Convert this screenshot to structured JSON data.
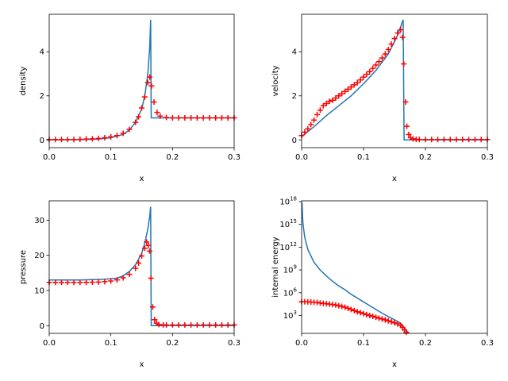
{
  "chart_data": [
    {
      "type": "line",
      "xlabel": "x",
      "ylabel": "density",
      "xlim": [
        0,
        0.3
      ],
      "ylim": [
        -0.35,
        5.7
      ],
      "xticks": [
        "0.0",
        "0.1",
        "0.2",
        "0.3"
      ],
      "yticks": [
        "0",
        "2",
        "4"
      ],
      "xtick_values": [
        0,
        0.1,
        0.2,
        0.3
      ],
      "ytick_values": [
        0,
        2,
        4
      ],
      "grid": false,
      "series": [
        {
          "style": "line",
          "color": "#1f77b4",
          "points": [
            [
              0,
              0
            ],
            [
              0.05,
              0.01
            ],
            [
              0.08,
              0.04
            ],
            [
              0.1,
              0.1
            ],
            [
              0.12,
              0.25
            ],
            [
              0.13,
              0.45
            ],
            [
              0.14,
              0.8
            ],
            [
              0.15,
              1.4
            ],
            [
              0.155,
              2.0
            ],
            [
              0.16,
              3.0
            ],
            [
              0.163,
              4.2
            ],
            [
              0.1645,
              5.45
            ],
            [
              0.1655,
              1.0
            ],
            [
              0.3,
              1.0
            ]
          ]
        },
        {
          "style": "marker-plus",
          "color": "#ff0000",
          "points": [
            [
              0.0,
              0.02
            ],
            [
              0.01,
              0.02
            ],
            [
              0.02,
              0.02
            ],
            [
              0.03,
              0.02
            ],
            [
              0.04,
              0.02
            ],
            [
              0.05,
              0.03
            ],
            [
              0.06,
              0.04
            ],
            [
              0.07,
              0.05
            ],
            [
              0.08,
              0.07
            ],
            [
              0.09,
              0.1
            ],
            [
              0.1,
              0.14
            ],
            [
              0.11,
              0.2
            ],
            [
              0.12,
              0.3
            ],
            [
              0.13,
              0.48
            ],
            [
              0.14,
              0.8
            ],
            [
              0.145,
              1.05
            ],
            [
              0.15,
              1.45
            ],
            [
              0.155,
              1.95
            ],
            [
              0.16,
              2.6
            ],
            [
              0.163,
              2.85
            ],
            [
              0.166,
              2.45
            ],
            [
              0.17,
              1.72
            ],
            [
              0.175,
              1.25
            ],
            [
              0.18,
              1.08
            ],
            [
              0.19,
              1.02
            ],
            [
              0.2,
              1.0
            ],
            [
              0.21,
              1.0
            ],
            [
              0.22,
              1.0
            ],
            [
              0.23,
              1.0
            ],
            [
              0.24,
              1.0
            ],
            [
              0.25,
              1.0
            ],
            [
              0.26,
              1.0
            ],
            [
              0.27,
              1.0
            ],
            [
              0.28,
              1.0
            ],
            [
              0.29,
              1.0
            ],
            [
              0.3,
              1.0
            ]
          ]
        }
      ]
    },
    {
      "type": "line",
      "xlabel": "x",
      "ylabel": "velocity",
      "xlim": [
        0,
        0.3
      ],
      "ylim": [
        -0.35,
        5.7
      ],
      "xticks": [
        "0.0",
        "0.1",
        "0.2",
        "0.3"
      ],
      "yticks": [
        "0",
        "2",
        "4"
      ],
      "xtick_values": [
        0,
        0.1,
        0.2,
        0.3
      ],
      "ytick_values": [
        0,
        2,
        4
      ],
      "grid": false,
      "series": [
        {
          "style": "line",
          "color": "#1f77b4",
          "points": [
            [
              0,
              0.15
            ],
            [
              0.02,
              0.6
            ],
            [
              0.04,
              1.1
            ],
            [
              0.06,
              1.55
            ],
            [
              0.08,
              2.0
            ],
            [
              0.1,
              2.55
            ],
            [
              0.12,
              3.15
            ],
            [
              0.14,
              3.9
            ],
            [
              0.155,
              4.75
            ],
            [
              0.164,
              5.45
            ],
            [
              0.1655,
              0.0
            ],
            [
              0.3,
              0.0
            ]
          ]
        },
        {
          "style": "marker-plus",
          "color": "#ff0000",
          "points": [
            [
              0.0,
              0.2
            ],
            [
              0.005,
              0.35
            ],
            [
              0.01,
              0.5
            ],
            [
              0.015,
              0.7
            ],
            [
              0.02,
              0.9
            ],
            [
              0.025,
              1.15
            ],
            [
              0.03,
              1.35
            ],
            [
              0.035,
              1.55
            ],
            [
              0.04,
              1.65
            ],
            [
              0.045,
              1.75
            ],
            [
              0.05,
              1.8
            ],
            [
              0.055,
              1.9
            ],
            [
              0.06,
              2.0
            ],
            [
              0.065,
              2.1
            ],
            [
              0.07,
              2.2
            ],
            [
              0.075,
              2.3
            ],
            [
              0.08,
              2.4
            ],
            [
              0.085,
              2.5
            ],
            [
              0.09,
              2.6
            ],
            [
              0.095,
              2.72
            ],
            [
              0.1,
              2.85
            ],
            [
              0.105,
              2.98
            ],
            [
              0.11,
              3.1
            ],
            [
              0.115,
              3.25
            ],
            [
              0.12,
              3.4
            ],
            [
              0.125,
              3.55
            ],
            [
              0.13,
              3.72
            ],
            [
              0.135,
              3.9
            ],
            [
              0.14,
              4.1
            ],
            [
              0.145,
              4.35
            ],
            [
              0.15,
              4.6
            ],
            [
              0.155,
              4.85
            ],
            [
              0.16,
              5.0
            ],
            [
              0.163,
              4.65
            ],
            [
              0.165,
              3.45
            ],
            [
              0.168,
              1.72
            ],
            [
              0.17,
              0.62
            ],
            [
              0.173,
              0.25
            ],
            [
              0.176,
              0.1
            ],
            [
              0.18,
              0.05
            ],
            [
              0.185,
              0.03
            ],
            [
              0.19,
              0.02
            ],
            [
              0.2,
              0.02
            ],
            [
              0.21,
              0.02
            ],
            [
              0.22,
              0.02
            ],
            [
              0.23,
              0.02
            ],
            [
              0.24,
              0.02
            ],
            [
              0.25,
              0.02
            ],
            [
              0.26,
              0.02
            ],
            [
              0.27,
              0.02
            ],
            [
              0.28,
              0.02
            ],
            [
              0.29,
              0.02
            ],
            [
              0.3,
              0.02
            ]
          ]
        }
      ]
    },
    {
      "type": "line",
      "xlabel": "x",
      "ylabel": "pressure",
      "xlim": [
        0,
        0.3
      ],
      "ylim": [
        -2.2,
        35.5
      ],
      "xticks": [
        "0.0",
        "0.1",
        "0.2",
        "0.3"
      ],
      "yticks": [
        "0",
        "10",
        "20",
        "30"
      ],
      "xtick_values": [
        0,
        0.1,
        0.2,
        0.3
      ],
      "ytick_values": [
        0,
        10,
        20,
        30
      ],
      "grid": false,
      "series": [
        {
          "style": "line",
          "color": "#1f77b4",
          "points": [
            [
              0,
              13.0
            ],
            [
              0.05,
              13.0
            ],
            [
              0.09,
              13.2
            ],
            [
              0.11,
              13.5
            ],
            [
              0.12,
              14.2
            ],
            [
              0.13,
              15.4
            ],
            [
              0.14,
              17.3
            ],
            [
              0.15,
              20.5
            ],
            [
              0.155,
              23.5
            ],
            [
              0.16,
              27.5
            ],
            [
              0.163,
              31.0
            ],
            [
              0.1645,
              33.8
            ],
            [
              0.1655,
              0.0
            ],
            [
              0.3,
              0.0
            ]
          ]
        },
        {
          "style": "marker-plus",
          "color": "#ff0000",
          "points": [
            [
              0.0,
              12.3
            ],
            [
              0.01,
              12.3
            ],
            [
              0.02,
              12.3
            ],
            [
              0.03,
              12.3
            ],
            [
              0.04,
              12.3
            ],
            [
              0.05,
              12.3
            ],
            [
              0.06,
              12.3
            ],
            [
              0.07,
              12.35
            ],
            [
              0.08,
              12.4
            ],
            [
              0.09,
              12.5
            ],
            [
              0.1,
              12.7
            ],
            [
              0.11,
              13.0
            ],
            [
              0.12,
              13.6
            ],
            [
              0.13,
              14.6
            ],
            [
              0.14,
              16.3
            ],
            [
              0.145,
              17.8
            ],
            [
              0.15,
              19.8
            ],
            [
              0.155,
              22.0
            ],
            [
              0.158,
              23.8
            ],
            [
              0.161,
              22.8
            ],
            [
              0.163,
              21.2
            ],
            [
              0.165,
              13.5
            ],
            [
              0.168,
              5.3
            ],
            [
              0.171,
              1.7
            ],
            [
              0.174,
              0.7
            ],
            [
              0.178,
              0.3
            ],
            [
              0.185,
              0.2
            ],
            [
              0.19,
              0.2
            ],
            [
              0.2,
              0.2
            ],
            [
              0.21,
              0.2
            ],
            [
              0.22,
              0.2
            ],
            [
              0.23,
              0.2
            ],
            [
              0.24,
              0.2
            ],
            [
              0.25,
              0.2
            ],
            [
              0.26,
              0.2
            ],
            [
              0.27,
              0.2
            ],
            [
              0.28,
              0.2
            ],
            [
              0.29,
              0.2
            ],
            [
              0.3,
              0.2
            ]
          ]
        }
      ]
    },
    {
      "type": "line",
      "xlabel": "x",
      "ylabel": "internal energy",
      "xlim": [
        0,
        0.3
      ],
      "ylim_log10": [
        0.65,
        18.1
      ],
      "yscale": "log",
      "xticks": [
        "0.0",
        "0.1",
        "0.2",
        "0.3"
      ],
      "yticks": [
        "10^3",
        "10^6",
        "10^9",
        "10^12",
        "10^15",
        "10^18"
      ],
      "xtick_values": [
        0,
        0.1,
        0.2,
        0.3
      ],
      "ytick_log10": [
        3,
        6,
        9,
        12,
        15,
        18
      ],
      "grid": false,
      "series": [
        {
          "style": "line",
          "color": "#1f77b4",
          "points_log10": [
            [
              0.0005,
              17.9
            ],
            [
              0.002,
              15.2
            ],
            [
              0.005,
              13.3
            ],
            [
              0.01,
              11.7
            ],
            [
              0.02,
              10.0
            ],
            [
              0.03,
              9.0
            ],
            [
              0.04,
              8.2
            ],
            [
              0.05,
              7.5
            ],
            [
              0.06,
              6.9
            ],
            [
              0.07,
              6.4
            ],
            [
              0.08,
              5.8
            ],
            [
              0.09,
              5.3
            ],
            [
              0.1,
              4.8
            ],
            [
              0.11,
              4.3
            ],
            [
              0.12,
              3.8
            ],
            [
              0.13,
              3.3
            ],
            [
              0.14,
              2.85
            ],
            [
              0.15,
              2.45
            ],
            [
              0.16,
              2.0
            ],
            [
              0.165,
              1.5
            ],
            [
              0.17,
              0.95
            ],
            [
              0.175,
              0.4
            ]
          ]
        },
        {
          "style": "marker-plus",
          "color": "#ff0000",
          "points_log10": [
            [
              0.0,
              4.82
            ],
            [
              0.005,
              4.82
            ],
            [
              0.01,
              4.8
            ],
            [
              0.015,
              4.78
            ],
            [
              0.02,
              4.75
            ],
            [
              0.025,
              4.72
            ],
            [
              0.03,
              4.65
            ],
            [
              0.035,
              4.6
            ],
            [
              0.04,
              4.55
            ],
            [
              0.045,
              4.5
            ],
            [
              0.05,
              4.45
            ],
            [
              0.055,
              4.38
            ],
            [
              0.06,
              4.3
            ],
            [
              0.065,
              4.2
            ],
            [
              0.07,
              4.1
            ],
            [
              0.075,
              3.95
            ],
            [
              0.08,
              3.8
            ],
            [
              0.085,
              3.65
            ],
            [
              0.09,
              3.5
            ],
            [
              0.095,
              3.38
            ],
            [
              0.1,
              3.25
            ],
            [
              0.105,
              3.12
            ],
            [
              0.11,
              3.0
            ],
            [
              0.115,
              2.9
            ],
            [
              0.12,
              2.78
            ],
            [
              0.125,
              2.65
            ],
            [
              0.13,
              2.55
            ],
            [
              0.135,
              2.42
            ],
            [
              0.14,
              2.3
            ],
            [
              0.145,
              2.18
            ],
            [
              0.15,
              2.05
            ],
            [
              0.155,
              1.9
            ],
            [
              0.16,
              1.7
            ],
            [
              0.163,
              1.45
            ],
            [
              0.166,
              1.1
            ],
            [
              0.169,
              0.8
            ],
            [
              0.172,
              0.5
            ]
          ]
        }
      ]
    }
  ]
}
